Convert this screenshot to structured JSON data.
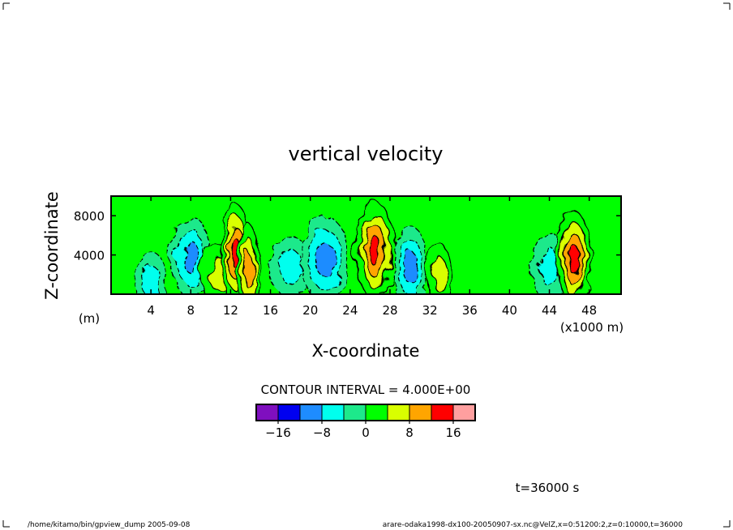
{
  "chart_data": {
    "type": "heatmap",
    "title": "vertical velocity",
    "xlabel": "X-coordinate",
    "ylabel": "Z-coordinate",
    "x_unit": "(x1000 m)",
    "y_unit": "(m)",
    "xlim": [
      0,
      51.2
    ],
    "ylim": [
      0,
      10000
    ],
    "x_ticks": [
      4,
      8,
      12,
      16,
      20,
      24,
      28,
      32,
      36,
      40,
      44,
      48
    ],
    "x_tick_labels": [
      "4",
      "8",
      "12",
      "16",
      "20",
      "24",
      "28",
      "32",
      "36",
      "40",
      "44",
      "48"
    ],
    "y_ticks": [
      4000,
      8000
    ],
    "y_tick_labels": [
      "4000",
      "8000"
    ],
    "contour_interval_text": "CONTOUR INTERVAL = 4.000E+00",
    "contour_interval": 4,
    "colorbar": {
      "levels": [
        -20,
        -16,
        -12,
        -8,
        -4,
        0,
        4,
        8,
        12,
        16,
        20
      ],
      "colors": [
        "#7f0fbf",
        "#0000f0",
        "#1e8cff",
        "#00ffee",
        "#1de98b",
        "#00ff00",
        "#d9ff00",
        "#ffa500",
        "#ff0000",
        "#ff9f9f"
      ],
      "tick_values": [
        -16,
        -8,
        0,
        8,
        16
      ],
      "tick_labels": [
        "−16",
        "−8",
        "0",
        "8",
        "16"
      ]
    },
    "cells": [
      {
        "x": 4,
        "z": 1200,
        "w": 1.6,
        "value": -6
      },
      {
        "x": 8,
        "z": 3800,
        "w": 2.0,
        "value": -10
      },
      {
        "x": 11,
        "z": 2000,
        "w": 2.0,
        "value": 6
      },
      {
        "x": 12.5,
        "z": 4200,
        "w": 1.5,
        "value": 14
      },
      {
        "x": 13.8,
        "z": 2500,
        "w": 1.2,
        "value": 12
      },
      {
        "x": 18,
        "z": 2800,
        "w": 2.0,
        "value": -6
      },
      {
        "x": 21.5,
        "z": 3500,
        "w": 2.4,
        "value": -11
      },
      {
        "x": 26.5,
        "z": 4400,
        "w": 2.0,
        "value": 15
      },
      {
        "x": 30,
        "z": 2800,
        "w": 1.8,
        "value": -10
      },
      {
        "x": 33,
        "z": 2000,
        "w": 1.2,
        "value": 6
      },
      {
        "x": 44,
        "z": 2800,
        "w": 1.8,
        "value": -7
      },
      {
        "x": 46.5,
        "z": 3500,
        "w": 1.6,
        "value": 14
      }
    ]
  },
  "footer": {
    "time": "t=36000 s",
    "left_path": "/home/kitamo/bin/gpview_dump  2005-09-08",
    "right_info": "arare-odaka1998-dx100-20050907-sx.nc@VelZ,x=0:51200:2,z=0:10000,t=36000"
  }
}
